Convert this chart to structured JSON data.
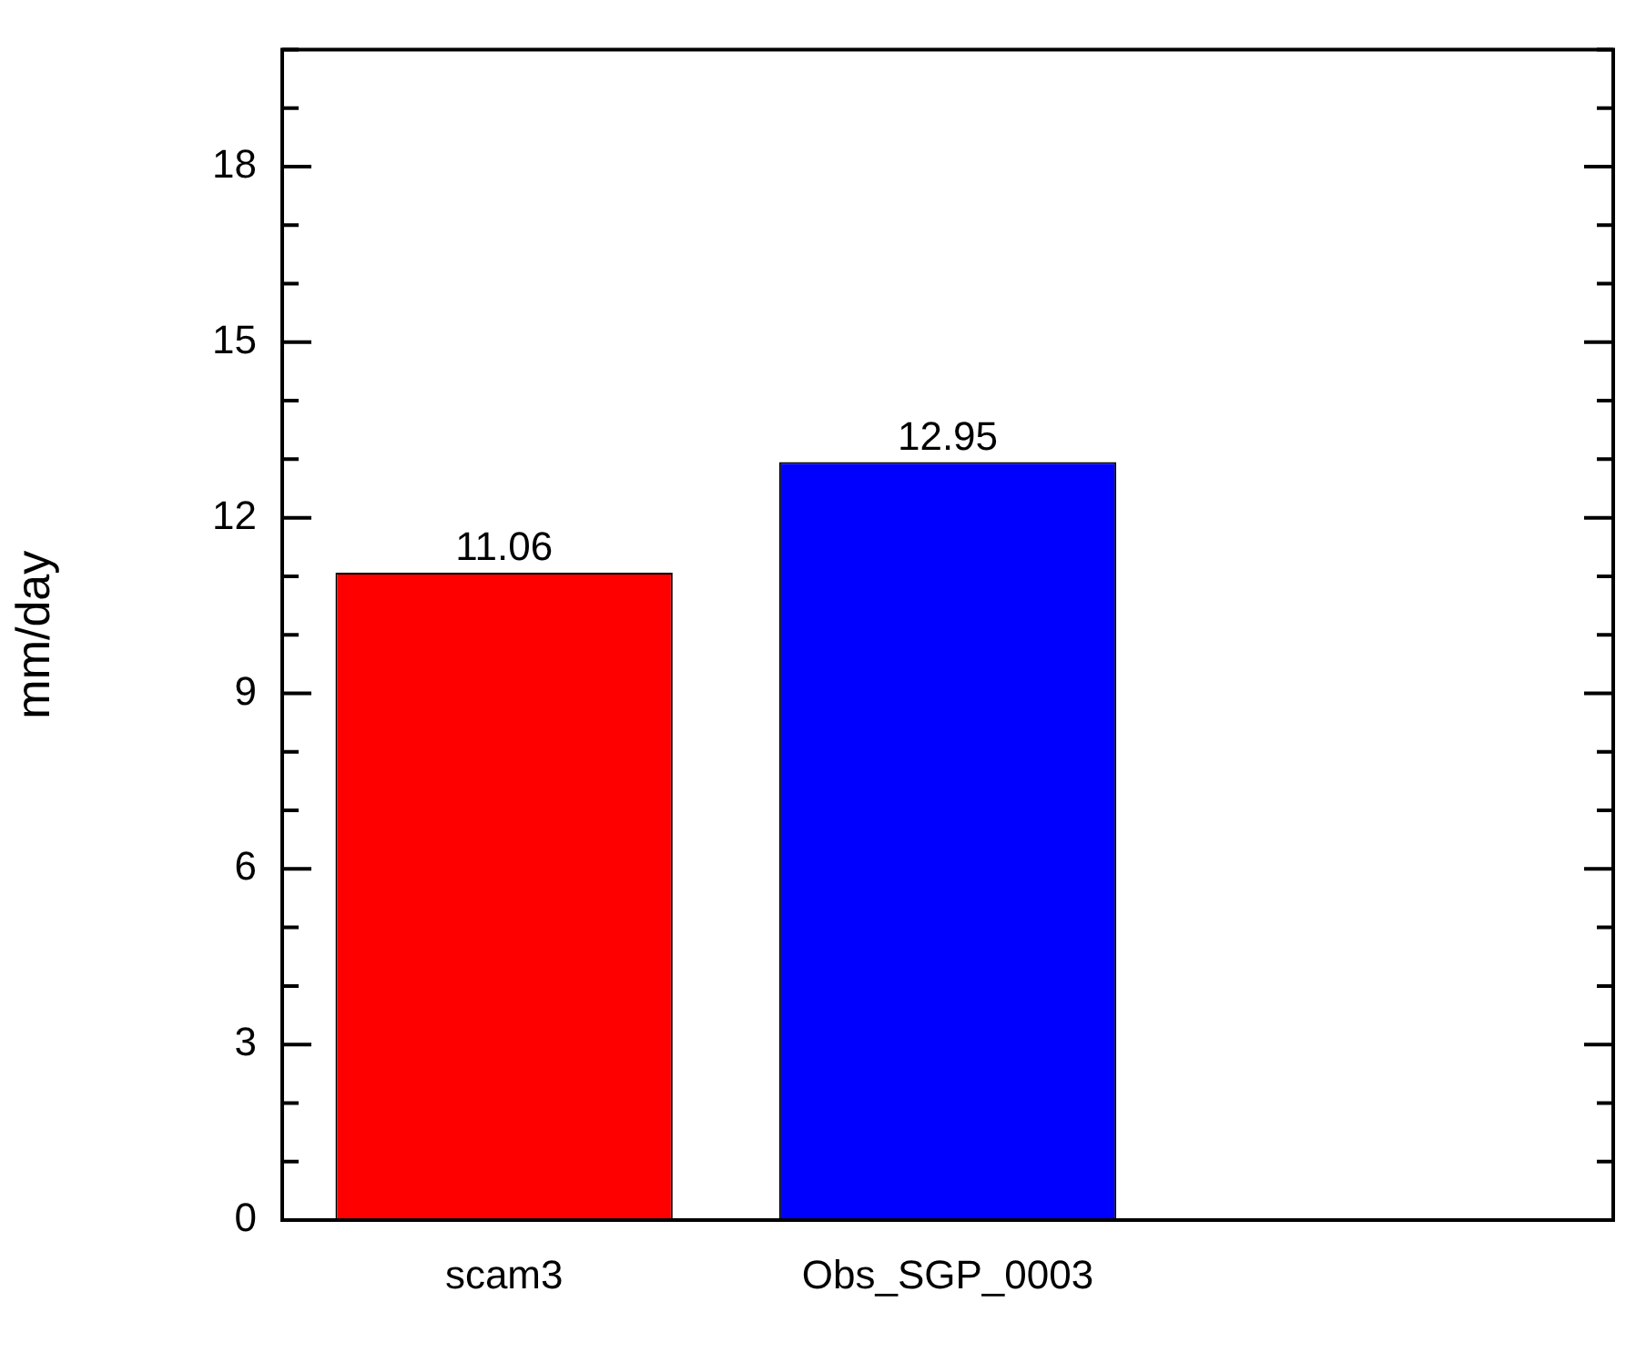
{
  "chart_data": {
    "type": "bar",
    "ylabel": "mm/day",
    "categories": [
      "scam3",
      "Obs_SGP_0003",
      null
    ],
    "values": [
      11.06,
      12.95,
      null
    ],
    "colors": [
      "#ff0000",
      "#0000ff",
      "#000000"
    ],
    "ylim": [
      0,
      20
    ],
    "yticks": [
      0,
      {
        "value": 1,
        "label": null
      },
      {
        "value": 2,
        "label": null
      },
      3,
      {
        "value": 4,
        "label": null
      },
      {
        "value": 5,
        "label": null
      },
      6,
      {
        "value": 7,
        "label": null
      },
      {
        "value": 8,
        "label": null
      },
      9,
      {
        "value": 10,
        "label": null
      },
      {
        "value": 11,
        "label": null
      },
      12,
      {
        "value": 13,
        "label": null
      },
      {
        "value": 14,
        "label": null
      },
      15,
      {
        "value": 16,
        "label": null
      },
      {
        "value": 17,
        "label": null
      },
      18,
      {
        "value": 19,
        "label": null
      },
      {
        "value": 20,
        "label": null
      }
    ],
    "data_labels": true,
    "grid": false,
    "legend": false
  }
}
